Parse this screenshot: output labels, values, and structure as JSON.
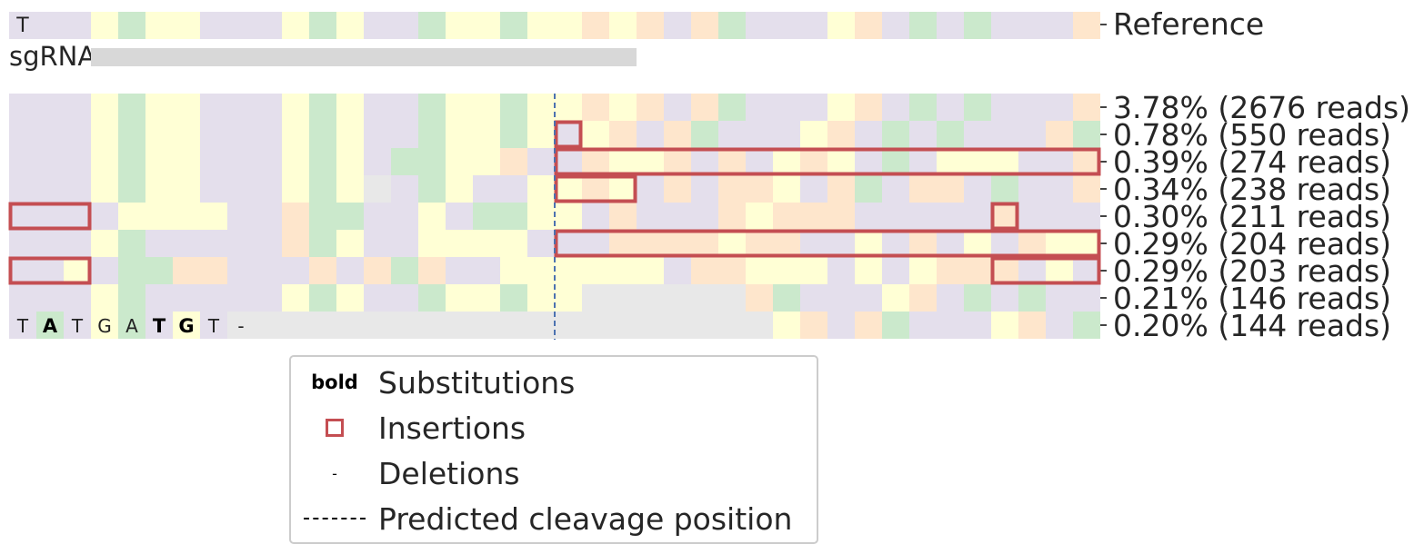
{
  "chart_data": {
    "type": "heatmap",
    "title": "",
    "reference_label": "Reference",
    "sgrna_label": "sgRNA",
    "sgrna_span": [
      3,
      23
    ],
    "cut_position": 20,
    "n_positions": 40,
    "reference": "TTTGAGGTTTGAGTTAGGAGGCGCTCATTTGCTATATTTC",
    "alleles": [
      {
        "label": "3.78% (2676 reads)",
        "percent": 3.78,
        "reads": 2676,
        "seq": "TTTGAGGTTTGAGTTAGGAGGCGCTCATTTGCTATATTTC",
        "insertions": []
      },
      {
        "label": "0.78% (550 reads)",
        "percent": 0.78,
        "reads": 550,
        "seq": "TTTGAGGTTTGAGTTAGGAGTGCTCATTTGCTATATTTCA",
        "insertions": [
          [
            20,
            1
          ]
        ]
      },
      {
        "label": "0.39% (274 reads)",
        "percent": 0.39,
        "reads": 274,
        "seq": "TTTGAGGTTTGAGTAAGGCTTCGGCTCTGCGTATGGGTTC",
        "insertions": [
          [
            20,
            20
          ]
        ]
      },
      {
        "label": "0.34% (238 reads)",
        "percent": 0.34,
        "reads": 238,
        "seq": "TTTGAGGTTTGAGNTAGTTGGCGTCTCCGTCATCCTATTC",
        "insertions": [
          [
            20,
            3
          ]
        ]
      },
      {
        "label": "0.30% (211 reads)",
        "percent": 0.3,
        "reads": 211,
        "seq": "TTTTGGGGTTCAATTGTAAGGTCTTTCGCCCTTTTTCTTT",
        "insertions": [
          [
            0,
            3
          ],
          [
            36,
            1
          ]
        ]
      },
      {
        "label": "0.29% (204 reads)",
        "percent": 0.29,
        "reads": 204,
        "seq": "TTTGATTTTTCAGTTGGGGTTTCCCCGCCTTGTCTGTCGG",
        "insertions": [
          [
            20,
            20
          ]
        ]
      },
      {
        "label": "0.29% (203 reads)",
        "percent": 0.29,
        "reads": 203,
        "seq": "TTGTAACCTTTCTCACTTGGGGGGTCCGGGTGTGCCCTGT",
        "insertions": [
          [
            0,
            3
          ],
          [
            36,
            4
          ]
        ]
      },
      {
        "label": "0.21% (146 reads)",
        "percent": 0.21,
        "reads": 146,
        "seq": "TTTGATTTTTGAGTTAGGAGG------CATTTGCTATATTTC",
        "insertions": []
      },
      {
        "label": "0.20% (144 reads)",
        "percent": 0.2,
        "reads": 144,
        "seq": "TATGATGT--------------------GCTCATTTGCTATATTTC",
        "insertions": [],
        "shown_letters": "TATGATGT-",
        "bold_positions": [
          1,
          5,
          6
        ]
      }
    ],
    "nucleotide_colors": {
      "A": "#cbe9cc",
      "C": "#fee6cc",
      "G": "#ffffd5",
      "T": "#e4dfec",
      "N": "#e8e8e8",
      "-": "#e8e8e8"
    },
    "insertion_color": "#c44e52",
    "sgrna_color": "#d8d8d8",
    "cut_line_color": "#4c72b0"
  },
  "reference_first_letter": "T",
  "legend": {
    "bold_symbol": "bold",
    "substitutions": "Substitutions",
    "insertions": "Insertions",
    "deletion_symbol": "-",
    "deletions": "Deletions",
    "cleavage": "Predicted cleavage position"
  }
}
